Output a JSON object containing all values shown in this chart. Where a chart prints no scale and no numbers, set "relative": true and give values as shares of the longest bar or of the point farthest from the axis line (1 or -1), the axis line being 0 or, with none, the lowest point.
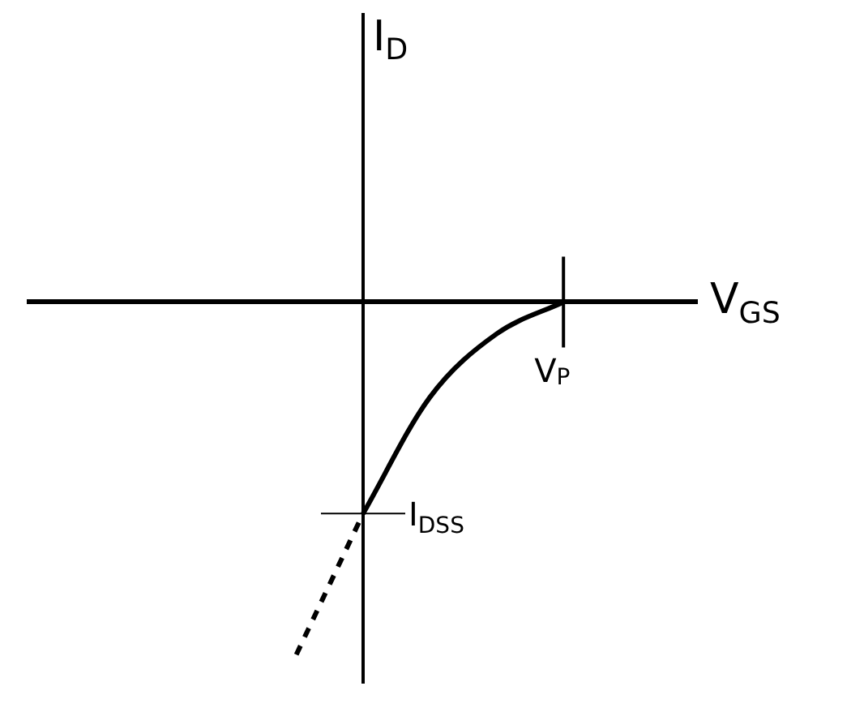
{
  "chart_data": {
    "type": "line",
    "relative": true,
    "categories": [
      null,
      null,
      null,
      null,
      null,
      null,
      null,
      null,
      null,
      null,
      null
    ],
    "series": [
      {
        "color": "#000000",
        "values": [
          null,
          null,
          null,
          null,
          null,
          -0.6,
          -0.27,
          -0.09,
          0,
          null,
          null
        ]
      },
      {
        "color": "#000000",
        "line_style": "dashed",
        "values": [
          null,
          null,
          null,
          null,
          -1,
          -0.6,
          null,
          null,
          null,
          null,
          null
        ]
      }
    ],
    "annotations": [
      "I$_{D}$",
      "V$_{GS}$",
      "V$_{P}$",
      "I$_{DSS}$"
    ],
    "grid": false,
    "legend": false
  }
}
